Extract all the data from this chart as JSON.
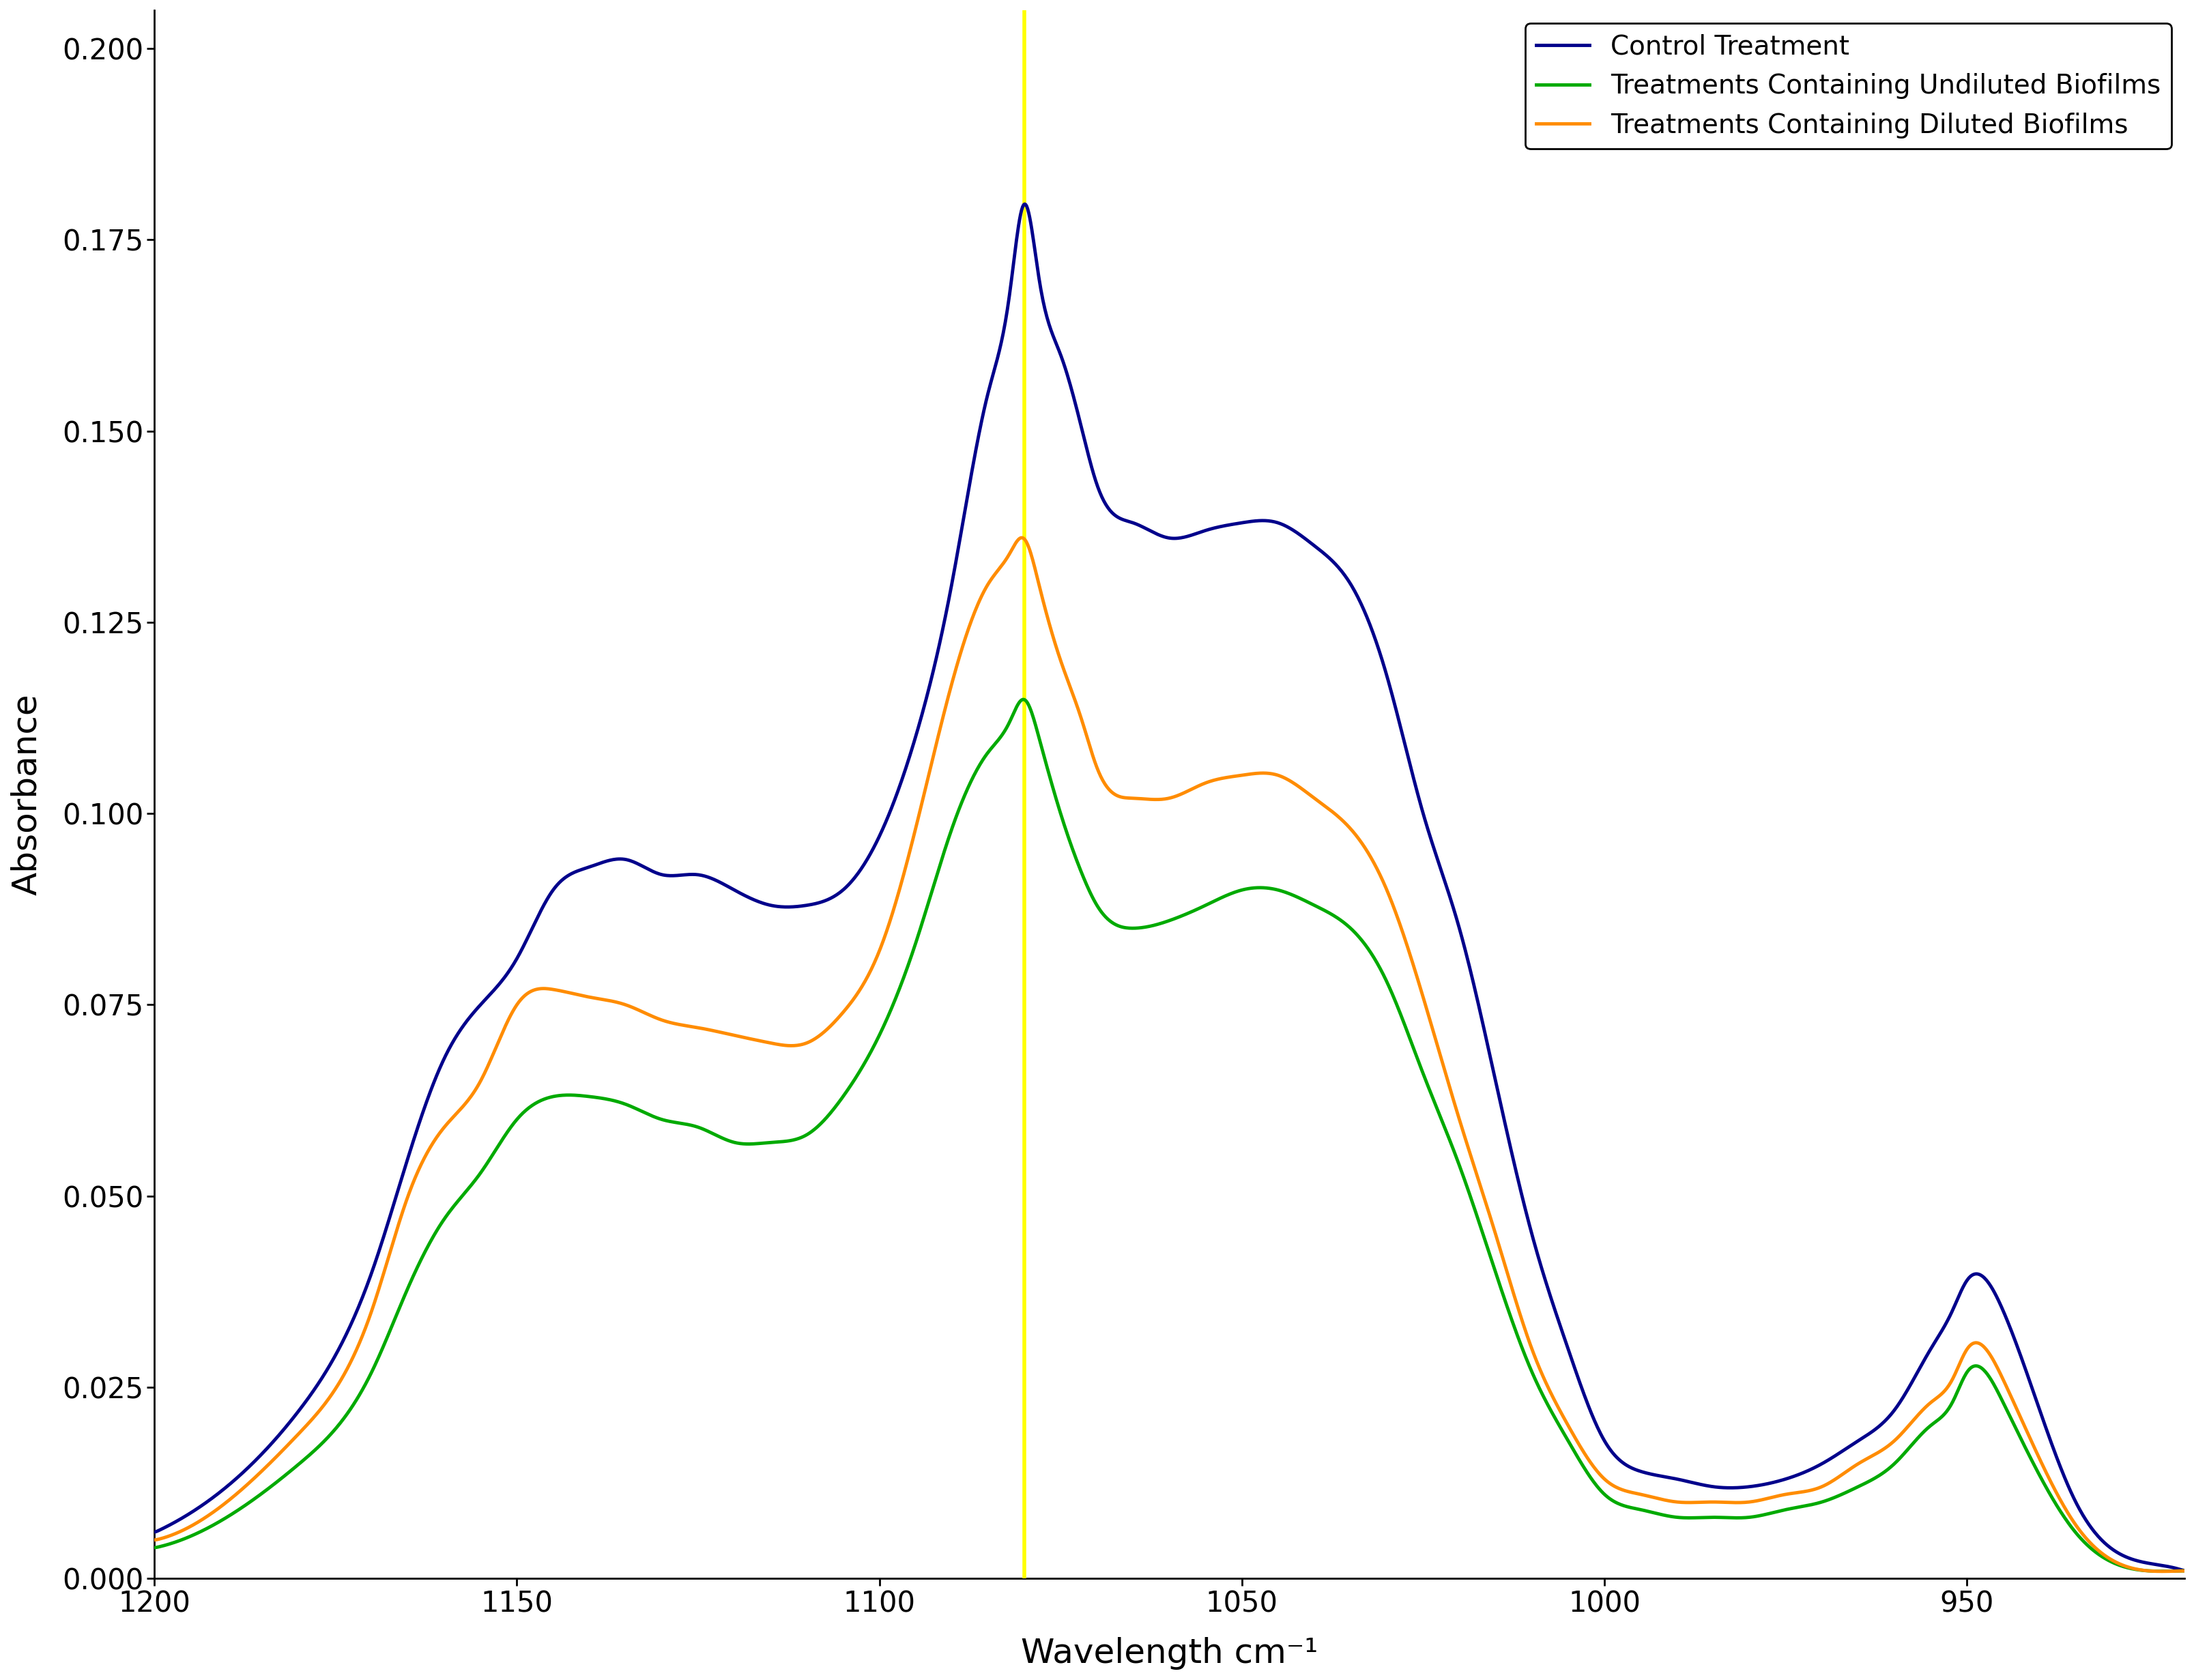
{
  "title": "",
  "xlabel": "Wavelength cm⁻¹",
  "ylabel": "Absorbance",
  "xlim": [
    1200,
    920
  ],
  "ylim": [
    0.0,
    0.205
  ],
  "yticks": [
    0.0,
    0.025,
    0.05,
    0.075,
    0.1,
    0.125,
    0.15,
    0.175,
    0.2
  ],
  "xticks": [
    1200,
    1150,
    1100,
    1050,
    1000,
    950
  ],
  "yellow_line_x": 1080,
  "background_color": "#ffffff",
  "legend_labels": [
    "Control Treatment",
    "Treatments Containing Undiluted Biofilms",
    "Treatments Containing Diluted Biofilms"
  ],
  "colors": {
    "control": "#00008B",
    "undiluted": "#00AA00",
    "diluted": "#FF8C00"
  },
  "linewidth": 3.5,
  "ylabel_fontsize": 36,
  "xlabel_fontsize": 36,
  "tick_fontsize": 30,
  "legend_fontsize": 28,
  "control_x": [
    1200,
    1190,
    1180,
    1170,
    1165,
    1160,
    1155,
    1150,
    1145,
    1140,
    1135,
    1130,
    1125,
    1120,
    1115,
    1110,
    1105,
    1100,
    1095,
    1090,
    1085,
    1082,
    1080,
    1078,
    1075,
    1072,
    1070,
    1065,
    1060,
    1055,
    1050,
    1045,
    1040,
    1035,
    1030,
    1025,
    1020,
    1015,
    1010,
    1005,
    1000,
    995,
    990,
    985,
    980,
    975,
    970,
    965,
    960,
    955,
    952,
    950,
    945,
    935,
    925,
    920
  ],
  "control_y": [
    0.006,
    0.012,
    0.022,
    0.04,
    0.055,
    0.068,
    0.075,
    0.081,
    0.09,
    0.093,
    0.094,
    0.092,
    0.092,
    0.09,
    0.088,
    0.088,
    0.09,
    0.097,
    0.11,
    0.13,
    0.155,
    0.168,
    0.18,
    0.17,
    0.16,
    0.15,
    0.143,
    0.138,
    0.136,
    0.137,
    0.138,
    0.138,
    0.135,
    0.13,
    0.118,
    0.1,
    0.085,
    0.065,
    0.045,
    0.03,
    0.018,
    0.014,
    0.013,
    0.012,
    0.012,
    0.013,
    0.015,
    0.018,
    0.022,
    0.03,
    0.035,
    0.039,
    0.035,
    0.01,
    0.002,
    0.001
  ],
  "undiluted_x": [
    1200,
    1190,
    1180,
    1170,
    1165,
    1160,
    1155,
    1150,
    1145,
    1140,
    1135,
    1130,
    1125,
    1120,
    1115,
    1110,
    1105,
    1100,
    1095,
    1090,
    1085,
    1082,
    1080,
    1078,
    1075,
    1072,
    1070,
    1065,
    1060,
    1055,
    1050,
    1045,
    1040,
    1035,
    1030,
    1025,
    1020,
    1015,
    1010,
    1005,
    1000,
    995,
    990,
    985,
    980,
    975,
    970,
    965,
    960,
    955,
    952,
    950,
    945,
    935,
    925,
    920
  ],
  "undiluted_y": [
    0.004,
    0.008,
    0.015,
    0.027,
    0.038,
    0.047,
    0.053,
    0.06,
    0.063,
    0.063,
    0.062,
    0.06,
    0.059,
    0.057,
    0.057,
    0.058,
    0.063,
    0.071,
    0.083,
    0.098,
    0.108,
    0.112,
    0.115,
    0.11,
    0.1,
    0.092,
    0.088,
    0.085,
    0.086,
    0.088,
    0.09,
    0.09,
    0.088,
    0.085,
    0.078,
    0.066,
    0.054,
    0.04,
    0.027,
    0.018,
    0.011,
    0.009,
    0.008,
    0.008,
    0.008,
    0.009,
    0.01,
    0.012,
    0.015,
    0.02,
    0.023,
    0.027,
    0.023,
    0.006,
    0.001,
    0.001
  ],
  "diluted_x": [
    1200,
    1190,
    1180,
    1170,
    1165,
    1160,
    1155,
    1150,
    1145,
    1140,
    1135,
    1130,
    1125,
    1120,
    1115,
    1110,
    1105,
    1100,
    1095,
    1090,
    1085,
    1082,
    1080,
    1078,
    1075,
    1072,
    1070,
    1065,
    1060,
    1055,
    1050,
    1045,
    1040,
    1035,
    1030,
    1025,
    1020,
    1015,
    1010,
    1005,
    1000,
    995,
    990,
    985,
    980,
    975,
    970,
    965,
    960,
    955,
    952,
    950,
    945,
    935,
    925,
    920
  ],
  "diluted_y": [
    0.005,
    0.01,
    0.019,
    0.035,
    0.05,
    0.059,
    0.065,
    0.075,
    0.077,
    0.076,
    0.075,
    0.073,
    0.072,
    0.071,
    0.07,
    0.07,
    0.074,
    0.082,
    0.098,
    0.117,
    0.13,
    0.134,
    0.136,
    0.13,
    0.12,
    0.112,
    0.106,
    0.102,
    0.102,
    0.104,
    0.105,
    0.105,
    0.102,
    0.098,
    0.09,
    0.076,
    0.06,
    0.045,
    0.03,
    0.02,
    0.013,
    0.011,
    0.01,
    0.01,
    0.01,
    0.011,
    0.012,
    0.015,
    0.018,
    0.023,
    0.026,
    0.03,
    0.026,
    0.007,
    0.001,
    0.001
  ]
}
